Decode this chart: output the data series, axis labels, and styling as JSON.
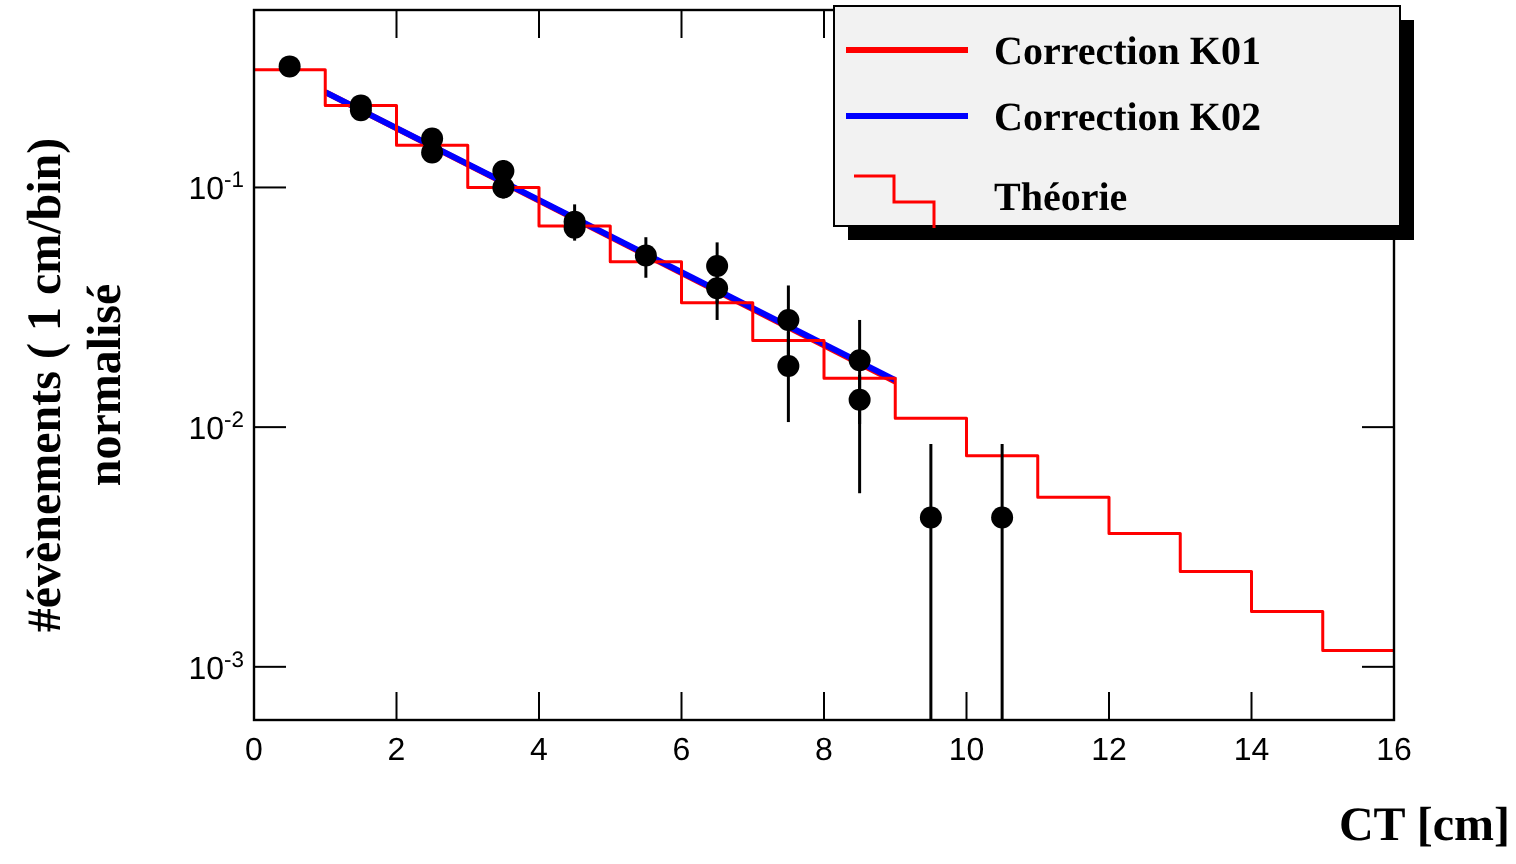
{
  "chart_data": {
    "type": "scatter",
    "xlabel": "CT [cm]",
    "ylabel": "#évènements ( 1 cm/bin)\nnormalisé",
    "xlim": [
      0,
      16
    ],
    "xticks": [
      0,
      2,
      4,
      6,
      8,
      10,
      12,
      14,
      16
    ],
    "ylim": [
      0.0006,
      0.55
    ],
    "yticks": [
      {
        "value": 0.001,
        "label": "10$^{-3}$"
      },
      {
        "value": 0.01,
        "label": "10$^{-2}$"
      },
      {
        "value": 0.1,
        "label": "10$^{-1}$"
      }
    ],
    "log": "y",
    "legend": "top right",
    "grid": false,
    "series": [
      {
        "name": "Correction K01",
        "type": "line",
        "color": "#ff0000",
        "x": [
          1,
          9
        ],
        "values": [
          0.25,
          0.0155
        ]
      },
      {
        "name": "Correction K02",
        "type": "line",
        "color": "#0000ff",
        "x": [
          1,
          9
        ],
        "values": [
          0.25,
          0.0157
        ]
      },
      {
        "name": "Théorie",
        "type": "step",
        "color": "#ff0000",
        "x": [
          0,
          1,
          2,
          3,
          4,
          5,
          6,
          7,
          8,
          9,
          10,
          11,
          12,
          13,
          14,
          15,
          16
        ],
        "values": [
          0.31,
          0.22,
          0.15,
          0.1,
          0.069,
          0.049,
          0.033,
          0.023,
          0.016,
          0.0109,
          0.0076,
          0.0051,
          0.0036,
          0.0025,
          0.0017,
          0.00117,
          0.00117
        ]
      },
      {
        "color": "#000000",
        "marker": "circle",
        "x": [
          0.5,
          1.5,
          2.5,
          3.5,
          4.5,
          5.5,
          6.5,
          7.5,
          8.5,
          9.5,
          10.5
        ],
        "values": [
          0.32,
          0.22,
          0.16,
          0.117,
          0.072,
          0.052,
          0.047,
          0.028,
          0.019,
          0.0042,
          0.0042
        ],
        "errors": [
          null,
          null,
          null,
          [
            0.09,
            0.13
          ],
          [
            0.06,
            0.085
          ],
          [
            0.042,
            0.062
          ],
          [
            0.028,
            0.05
          ],
          [
            0.019,
            0.039
          ],
          [
            0.0103,
            0.028
          ],
          [
            0.0006,
            0.0085
          ],
          [
            0.0006,
            0.0085
          ]
        ]
      },
      {
        "color": "#000000",
        "marker": "circle",
        "x": [
          1.5,
          2.5,
          3.5,
          4.5,
          5.5,
          6.5,
          7.5,
          8.5
        ],
        "values": [
          0.21,
          0.14,
          0.1,
          0.068,
          null,
          0.038,
          0.018,
          0.013
        ],
        "errors": [
          null,
          null,
          null,
          null,
          null,
          [
            0.033,
            0.059
          ],
          [
            0.0105,
            0.025
          ],
          [
            0.0053,
            0.0165
          ]
        ]
      }
    ]
  }
}
